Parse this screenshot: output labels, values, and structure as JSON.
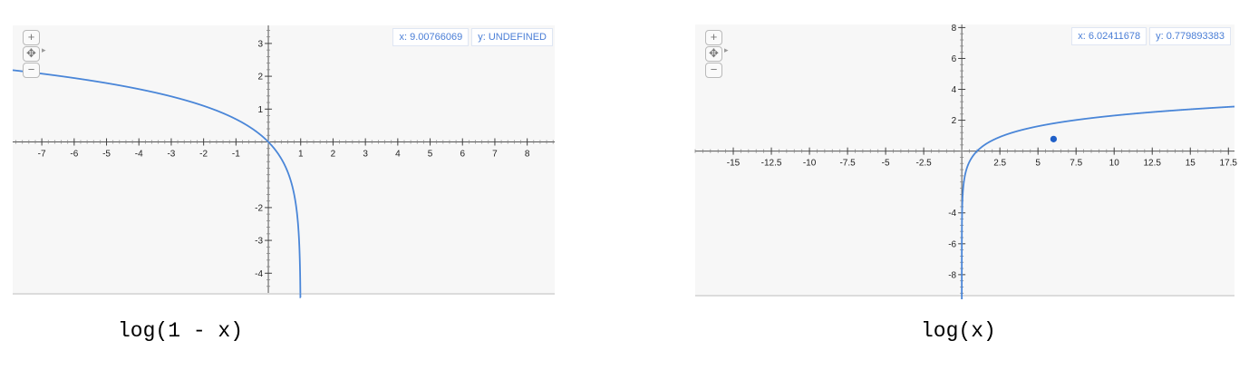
{
  "charts": [
    {
      "caption": "log(1 - x)",
      "readout": {
        "x": "x: 9.00766069",
        "y": "y: UNDEFINED"
      },
      "controls": {
        "zoom_in": "+",
        "pan": "✥",
        "zoom_out": "−",
        "expand": "▸"
      },
      "chart_data": {
        "type": "line",
        "function": "log(1 - x)",
        "xlim": [
          -7.9,
          8.85
        ],
        "ylim": [
          -4.6,
          3.55
        ],
        "x_ticks": [
          -7,
          -6,
          -5,
          -4,
          -3,
          -2,
          -1,
          1,
          2,
          3,
          4,
          5,
          6,
          7,
          8
        ],
        "y_ticks": [
          -4,
          -3,
          -2,
          1,
          2,
          3
        ],
        "series": [
          {
            "color": "#4a86d8"
          }
        ],
        "grid": false
      }
    },
    {
      "caption": "log(x)",
      "readout": {
        "x": "x: 6.02411678",
        "y": "y: 0.779893383"
      },
      "controls": {
        "zoom_in": "+",
        "pan": "✥",
        "zoom_out": "−",
        "expand": "▸"
      },
      "chart_data": {
        "type": "line",
        "function": "log(x)",
        "xlim": [
          -17.5,
          17.9
        ],
        "ylim": [
          -9.3,
          8.2
        ],
        "x_ticks": [
          -15,
          -12.5,
          -10,
          -7.5,
          -5,
          -2.5,
          2.5,
          5,
          7.5,
          10,
          12.5,
          15,
          17.5
        ],
        "y_ticks": [
          -8,
          -6,
          -4,
          2,
          4,
          6,
          8
        ],
        "series": [
          {
            "color": "#4a86d8"
          }
        ],
        "highlight_point": {
          "x": 6.02411678,
          "y": 0.779893383
        },
        "grid": false
      }
    }
  ]
}
